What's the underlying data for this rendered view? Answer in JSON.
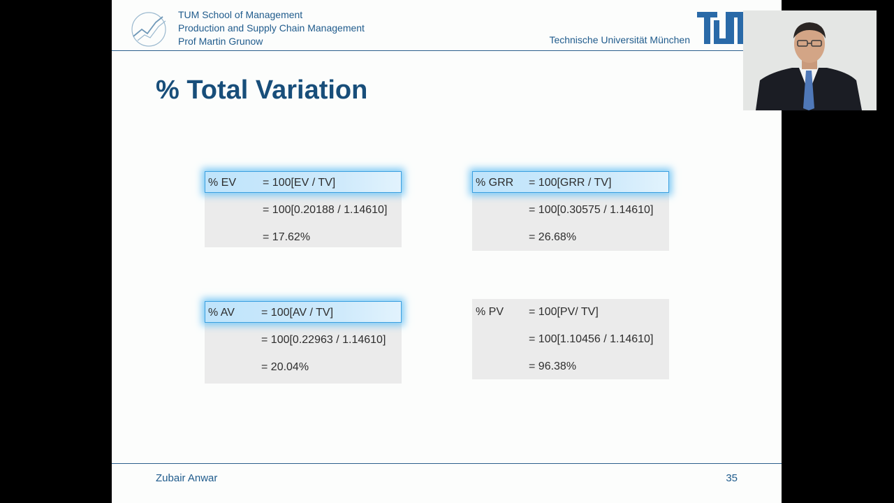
{
  "header": {
    "lines": [
      "TUM School of Management",
      "Production and Supply Chain Management",
      "Prof Martin Grunow"
    ],
    "university": "Technische Universität München",
    "logo_text": "TUM"
  },
  "title": "% Total Variation",
  "panels": [
    {
      "label": "% EV",
      "highlighted": true,
      "lines": [
        "= 100[EV / TV]",
        "= 100[0.20188 / 1.14610]",
        "= 17.62%"
      ]
    },
    {
      "label": "% GRR",
      "highlighted": true,
      "lines": [
        "= 100[GRR / TV]",
        "= 100[0.30575 / 1.14610]",
        "= 26.68%"
      ]
    },
    {
      "label": "% AV",
      "highlighted": true,
      "lines": [
        "= 100[AV / TV]",
        "= 100[0.22963 / 1.14610]",
        "= 20.04%"
      ]
    },
    {
      "label": "% PV",
      "highlighted": false,
      "lines": [
        "= 100[PV/ TV]",
        "= 100[1.10456 / 1.14610]",
        "= 96.38%"
      ]
    }
  ],
  "footer": {
    "presenter": "Zubair Anwar",
    "page": "35"
  },
  "colors": {
    "tum_blue": "#1f5b8c",
    "title_blue": "#184e7a",
    "highlight": "#7fcaf5",
    "panel_bg": "#ebebeb"
  }
}
